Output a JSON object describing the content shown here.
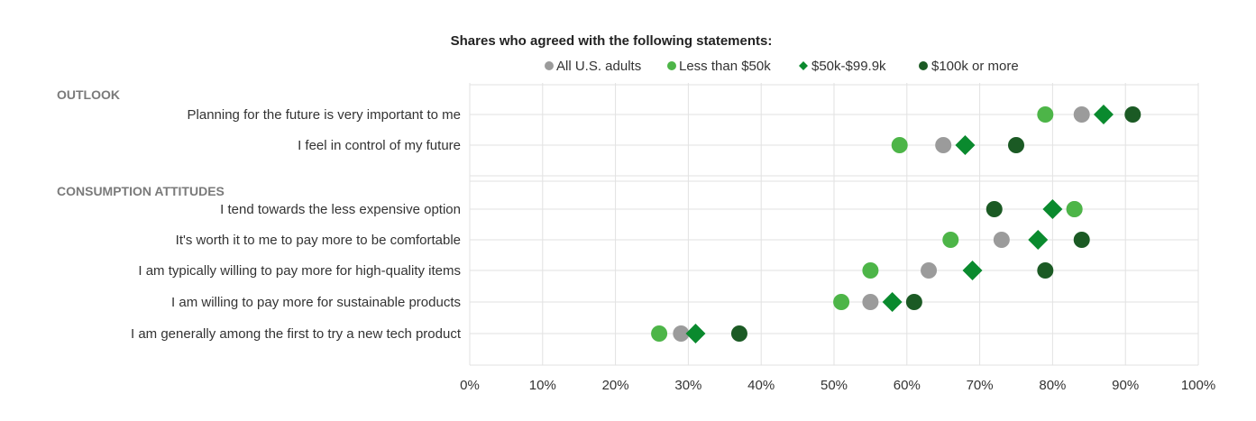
{
  "chart_data": {
    "type": "scatter",
    "title": "Shares who agreed with the following statements:",
    "xlim": [
      0,
      100
    ],
    "x_ticks": [
      "0%",
      "10%",
      "20%",
      "30%",
      "40%",
      "50%",
      "60%",
      "70%",
      "80%",
      "90%",
      "100%"
    ],
    "grid": true,
    "legend_position": "top",
    "series": [
      {
        "name": "All U.S. adults",
        "color": "#9b9b9b",
        "marker": "circle"
      },
      {
        "name": "Less than $50k",
        "color": "#4db548",
        "marker": "circle"
      },
      {
        "name": "$50k-$99.9k",
        "color": "#0a8a2e",
        "marker": "diamond"
      },
      {
        "name": "$100k or more",
        "color": "#1b5a24",
        "marker": "circle"
      }
    ],
    "groups": [
      {
        "label": "OUTLOOK",
        "rows": [
          {
            "label": "Planning for the future is very important to me",
            "values": [
              84,
              79,
              87,
              91
            ]
          },
          {
            "label": "I feel in control of my future",
            "values": [
              65,
              59,
              68,
              75
            ]
          }
        ]
      },
      {
        "label": "CONSUMPTION ATTITUDES",
        "rows": [
          {
            "label": "I tend towards the less expensive option",
            "values": [
              83,
              83,
              80,
              72
            ]
          },
          {
            "label": "It's worth it to me to pay more to be comfortable",
            "values": [
              73,
              66,
              78,
              84
            ]
          },
          {
            "label": "I am typically willing to pay more for high-quality items",
            "values": [
              63,
              55,
              69,
              79
            ]
          },
          {
            "label": "I am willing to pay more for sustainable products",
            "values": [
              55,
              51,
              58,
              61
            ]
          },
          {
            "label": "I am generally among the first to try a new tech product",
            "values": [
              29,
              26,
              31,
              37
            ]
          }
        ]
      }
    ]
  }
}
